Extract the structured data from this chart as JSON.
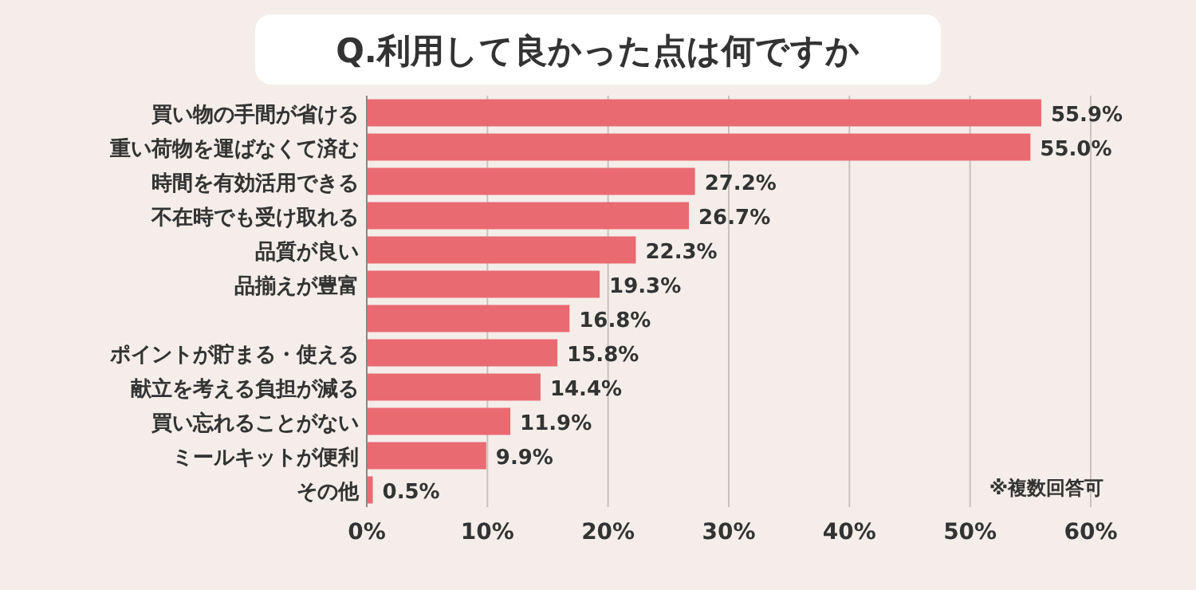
{
  "chart_data": {
    "type": "bar",
    "orientation": "horizontal",
    "title": "Q.利用して良かった点は何ですか",
    "categories": [
      "買い物の手間が省ける",
      "重い荷物を運ばなくて済む",
      "時間を有効活用できる",
      "不在時でも受け取れる",
      "品質が良い",
      "品揃えが豊富",
      null,
      "ポイントが貯まる・使える",
      "献立を考える負担が減る",
      "買い忘れることがない",
      "ミールキットが便利",
      "その他"
    ],
    "values": [
      55.9,
      55.0,
      27.2,
      26.7,
      22.3,
      19.3,
      16.8,
      15.8,
      14.4,
      11.9,
      9.9,
      0.5
    ],
    "value_labels": [
      "55.9%",
      "55.0%",
      "27.2%",
      "26.7%",
      "22.3%",
      "19.3%",
      "16.8%",
      "15.8%",
      "14.4%",
      "11.9%",
      "9.9%",
      "0.5%"
    ],
    "color": "#ea6a72",
    "xlim": [
      0,
      60
    ],
    "xticks": [
      {
        "value": 0,
        "label": "0%"
      },
      {
        "value": 10,
        "label": "10%"
      },
      {
        "value": 20,
        "label": "20%"
      },
      {
        "value": 30,
        "label": "30%"
      },
      {
        "value": 40,
        "label": "40%"
      },
      {
        "value": 50,
        "label": "50%"
      },
      {
        "value": 60,
        "label": "60%"
      }
    ],
    "grid": "x",
    "annotations": [
      "※複数回答可"
    ]
  }
}
